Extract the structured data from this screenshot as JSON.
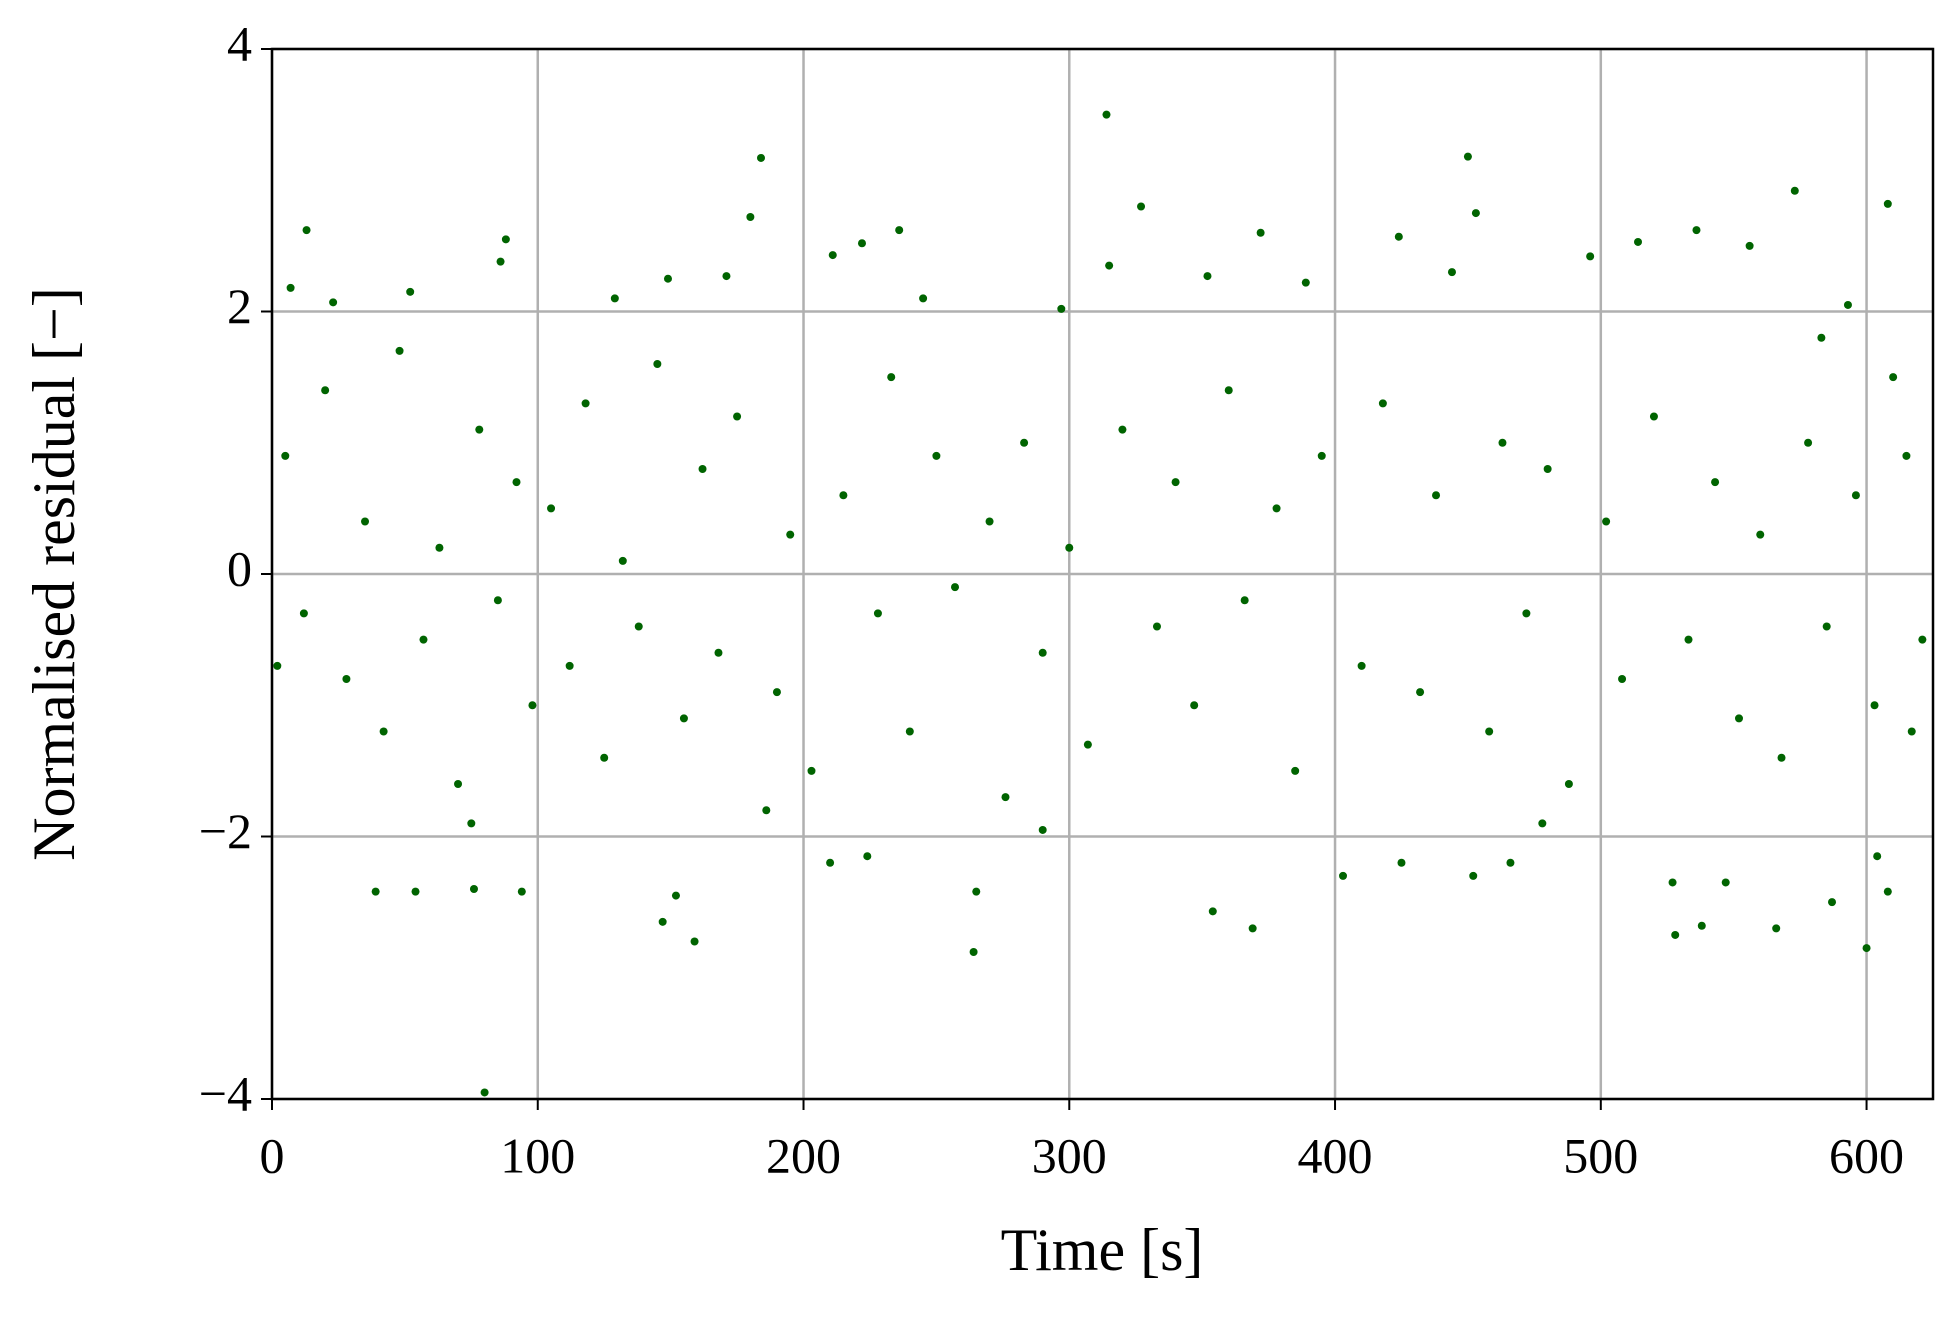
{
  "chart_data": {
    "type": "scatter",
    "x_label": "Time [s]",
    "y_label": "Normalised residual [−]",
    "color": "#006400",
    "grid": true,
    "xlim": [
      0,
      625
    ],
    "ylim": [
      -4,
      4
    ],
    "xticks": [
      0,
      100,
      200,
      300,
      400,
      500,
      600
    ],
    "yticks": [
      {
        "value": -4,
        "label": "−4"
      },
      {
        "value": -2,
        "label": "−2"
      },
      0,
      2,
      4
    ],
    "x": [
      80,
      314,
      184,
      450,
      573,
      608,
      264,
      159,
      600,
      369,
      327,
      13,
      88,
      236,
      372,
      424,
      536,
      556,
      180,
      453,
      222,
      147,
      152,
      354,
      528,
      538,
      566,
      39,
      54,
      76,
      94,
      210,
      224,
      265,
      403,
      425,
      452,
      466,
      527,
      547,
      587,
      604,
      608,
      7,
      23,
      52,
      86,
      129,
      149,
      171,
      211,
      245,
      297,
      315,
      352,
      389,
      444,
      496,
      514,
      593,
      5,
      12,
      20,
      28,
      35,
      42,
      48,
      57,
      63,
      70,
      78,
      85,
      92,
      98,
      105,
      112,
      118,
      125,
      132,
      138,
      145,
      155,
      162,
      168,
      175,
      190,
      195,
      203,
      215,
      228,
      233,
      240,
      250,
      257,
      270,
      276,
      283,
      290,
      300,
      307,
      320,
      333,
      340,
      347,
      360,
      366,
      378,
      385,
      395,
      410,
      418,
      432,
      438,
      458,
      463,
      472,
      480,
      488,
      502,
      508,
      520,
      533,
      543,
      552,
      560,
      568,
      578,
      585,
      596,
      603,
      615,
      621,
      2,
      617,
      610,
      75,
      186,
      290,
      478,
      583
    ],
    "y": [
      -3.95,
      3.5,
      3.17,
      3.18,
      2.92,
      2.82,
      -2.88,
      -2.8,
      -2.85,
      -2.7,
      2.8,
      2.62,
      2.55,
      2.62,
      2.6,
      2.57,
      2.62,
      2.5,
      2.72,
      2.75,
      2.52,
      -2.65,
      -2.45,
      -2.57,
      -2.75,
      -2.68,
      -2.7,
      -2.42,
      -2.42,
      -2.4,
      -2.42,
      -2.2,
      -2.15,
      -2.42,
      -2.3,
      -2.2,
      -2.3,
      -2.2,
      -2.35,
      -2.35,
      -2.5,
      -2.15,
      -2.42,
      2.18,
      2.07,
      2.15,
      2.38,
      2.1,
      2.25,
      2.27,
      2.43,
      2.1,
      2.02,
      2.35,
      2.27,
      2.22,
      2.3,
      2.42,
      2.53,
      2.05,
      0.9,
      -0.3,
      1.4,
      -0.8,
      0.4,
      -1.2,
      1.7,
      -0.5,
      0.2,
      -1.6,
      1.1,
      -0.2,
      0.7,
      -1.0,
      0.5,
      -0.7,
      1.3,
      -1.4,
      0.1,
      -0.4,
      1.6,
      -1.1,
      0.8,
      -0.6,
      1.2,
      -0.9,
      0.3,
      -1.5,
      0.6,
      -0.3,
      1.5,
      -1.2,
      0.9,
      -0.1,
      0.4,
      -1.7,
      1.0,
      -0.6,
      0.2,
      -1.3,
      1.1,
      -0.4,
      0.7,
      -1.0,
      1.4,
      -0.2,
      0.5,
      -1.5,
      0.9,
      -0.7,
      1.3,
      -0.9,
      0.6,
      -1.2,
      1.0,
      -0.3,
      0.8,
      -1.6,
      0.4,
      -0.8,
      1.2,
      -0.5,
      0.7,
      -1.1,
      0.3,
      -1.4,
      1.0,
      -0.4,
      0.6,
      -1.0,
      0.9,
      -0.5,
      -0.7,
      -1.2,
      1.5,
      -1.9,
      -1.8,
      -1.95,
      -1.9,
      1.8
    ]
  }
}
